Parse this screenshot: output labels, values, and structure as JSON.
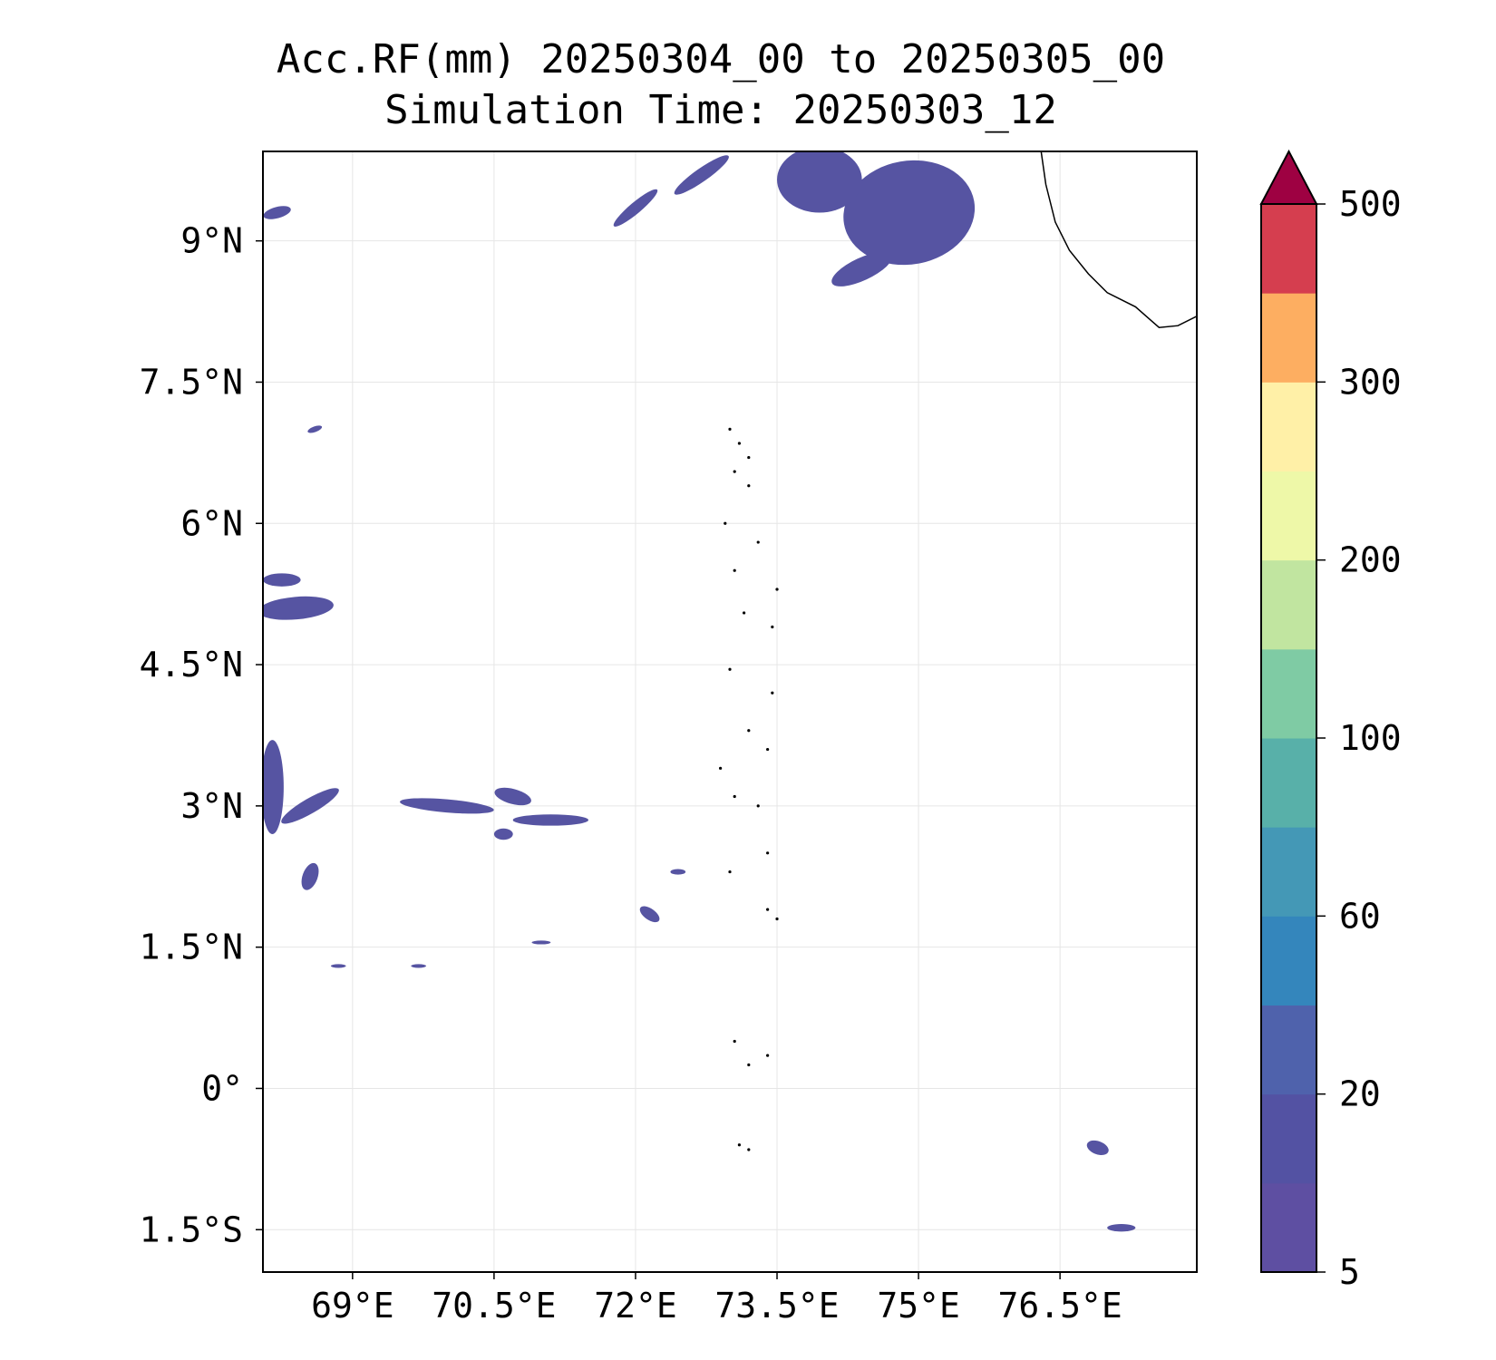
{
  "title_line1": "Acc.RF(mm) 20250304_00 to 20250305_00",
  "title_line2": "Simulation Time: 20250303_12",
  "map": {
    "projection": "PlateCarree",
    "lon_range": [
      68.05,
      77.95
    ],
    "lat_range": [
      -1.95,
      9.95
    ],
    "x_ticks": [
      {
        "value": 69.0,
        "label": "69°E"
      },
      {
        "value": 70.5,
        "label": "70.5°E"
      },
      {
        "value": 72.0,
        "label": "72°E"
      },
      {
        "value": 73.5,
        "label": "73.5°E"
      },
      {
        "value": 75.0,
        "label": "75°E"
      },
      {
        "value": 76.5,
        "label": "76.5°E"
      }
    ],
    "y_ticks": [
      {
        "value": 9.0,
        "label": "9°N"
      },
      {
        "value": 7.5,
        "label": "7.5°N"
      },
      {
        "value": 6.0,
        "label": "6°N"
      },
      {
        "value": 4.5,
        "label": "4.5°N"
      },
      {
        "value": 3.0,
        "label": "3°N"
      },
      {
        "value": 1.5,
        "label": "1.5°N"
      },
      {
        "value": 0.0,
        "label": "0°"
      },
      {
        "value": -1.5,
        "label": "1.5°S"
      }
    ],
    "gridlines": true,
    "field_color": "#5654a2",
    "coastline_color": "#000000",
    "coastline_india_sw": [
      [
        76.3,
        9.95
      ],
      [
        76.35,
        9.6
      ],
      [
        76.45,
        9.2
      ],
      [
        76.6,
        8.9
      ],
      [
        76.8,
        8.65
      ],
      [
        77.0,
        8.45
      ],
      [
        77.3,
        8.3
      ],
      [
        77.55,
        8.08
      ],
      [
        77.75,
        8.1
      ],
      [
        77.95,
        8.2
      ]
    ],
    "islands": [
      [
        73.0,
        7.0
      ],
      [
        73.1,
        6.85
      ],
      [
        73.2,
        6.7
      ],
      [
        73.05,
        6.55
      ],
      [
        73.2,
        6.4
      ],
      [
        72.95,
        6.0
      ],
      [
        73.3,
        5.8
      ],
      [
        73.05,
        5.5
      ],
      [
        73.5,
        5.3
      ],
      [
        73.15,
        5.05
      ],
      [
        73.45,
        4.9
      ],
      [
        73.0,
        4.45
      ],
      [
        73.45,
        4.2
      ],
      [
        73.2,
        3.8
      ],
      [
        73.4,
        3.6
      ],
      [
        72.9,
        3.4
      ],
      [
        73.05,
        3.1
      ],
      [
        73.3,
        3.0
      ],
      [
        73.4,
        2.5
      ],
      [
        73.0,
        2.3
      ],
      [
        73.4,
        1.9
      ],
      [
        73.5,
        1.8
      ],
      [
        73.05,
        0.5
      ],
      [
        73.2,
        0.25
      ],
      [
        73.4,
        0.35
      ],
      [
        73.1,
        -0.6
      ],
      [
        73.2,
        -0.65
      ]
    ],
    "rain_patches": [
      {
        "lon": 74.9,
        "lat": 9.3,
        "rx": 0.7,
        "ry": 0.55,
        "rot": -10
      },
      {
        "lon": 73.95,
        "lat": 9.65,
        "rx": 0.45,
        "ry": 0.35,
        "rot": 0
      },
      {
        "lon": 74.4,
        "lat": 8.7,
        "rx": 0.35,
        "ry": 0.12,
        "rot": -25
      },
      {
        "lon": 72.7,
        "lat": 9.7,
        "rx": 0.35,
        "ry": 0.07,
        "rot": -35
      },
      {
        "lon": 72.0,
        "lat": 9.35,
        "rx": 0.3,
        "ry": 0.06,
        "rot": -40
      },
      {
        "lon": 68.2,
        "lat": 9.3,
        "rx": 0.15,
        "ry": 0.06,
        "rot": -15
      },
      {
        "lon": 68.4,
        "lat": 5.1,
        "rx": 0.4,
        "ry": 0.12,
        "rot": -5
      },
      {
        "lon": 68.25,
        "lat": 5.4,
        "rx": 0.2,
        "ry": 0.07,
        "rot": 0
      },
      {
        "lon": 68.15,
        "lat": 3.2,
        "rx": 0.12,
        "ry": 0.5,
        "rot": 0
      },
      {
        "lon": 68.55,
        "lat": 3.0,
        "rx": 0.35,
        "ry": 0.08,
        "rot": -30
      },
      {
        "lon": 70.0,
        "lat": 3.0,
        "rx": 0.5,
        "ry": 0.07,
        "rot": 5
      },
      {
        "lon": 70.7,
        "lat": 3.1,
        "rx": 0.2,
        "ry": 0.08,
        "rot": 15
      },
      {
        "lon": 71.1,
        "lat": 2.85,
        "rx": 0.4,
        "ry": 0.06,
        "rot": 0
      },
      {
        "lon": 70.6,
        "lat": 2.7,
        "rx": 0.1,
        "ry": 0.06,
        "rot": 0
      },
      {
        "lon": 68.55,
        "lat": 2.25,
        "rx": 0.08,
        "ry": 0.15,
        "rot": 20
      },
      {
        "lon": 72.15,
        "lat": 1.85,
        "rx": 0.12,
        "ry": 0.06,
        "rot": 35
      },
      {
        "lon": 72.45,
        "lat": 2.3,
        "rx": 0.08,
        "ry": 0.03,
        "rot": 0
      },
      {
        "lon": 76.9,
        "lat": -0.63,
        "rx": 0.12,
        "ry": 0.07,
        "rot": 20
      },
      {
        "lon": 77.15,
        "lat": -1.48,
        "rx": 0.15,
        "ry": 0.04,
        "rot": 0
      },
      {
        "lon": 68.85,
        "lat": 1.3,
        "rx": 0.08,
        "ry": 0.02,
        "rot": 0
      },
      {
        "lon": 69.7,
        "lat": 1.3,
        "rx": 0.08,
        "ry": 0.02,
        "rot": 0
      },
      {
        "lon": 68.6,
        "lat": 7.0,
        "rx": 0.08,
        "ry": 0.03,
        "rot": -20
      },
      {
        "lon": 71.0,
        "lat": 1.55,
        "rx": 0.1,
        "ry": 0.02,
        "rot": 0
      }
    ]
  },
  "colorbar": {
    "extend": "max",
    "colors": [
      "#5e4fa2",
      "#5352a3",
      "#4f62ac",
      "#3486bc",
      "#4498b6",
      "#58b0a9",
      "#7fcba4",
      "#c1e5a0",
      "#eef8a8",
      "#fff0a7",
      "#fdae61",
      "#d53e4f"
    ],
    "extend_color": "#9e0142",
    "tick_labels": [
      {
        "index": 0,
        "label": "5"
      },
      {
        "index": 2,
        "label": "20"
      },
      {
        "index": 4,
        "label": "60"
      },
      {
        "index": 6,
        "label": "100"
      },
      {
        "index": 8,
        "label": "200"
      },
      {
        "index": 10,
        "label": "300"
      },
      {
        "index": 12,
        "label": "500"
      }
    ]
  }
}
